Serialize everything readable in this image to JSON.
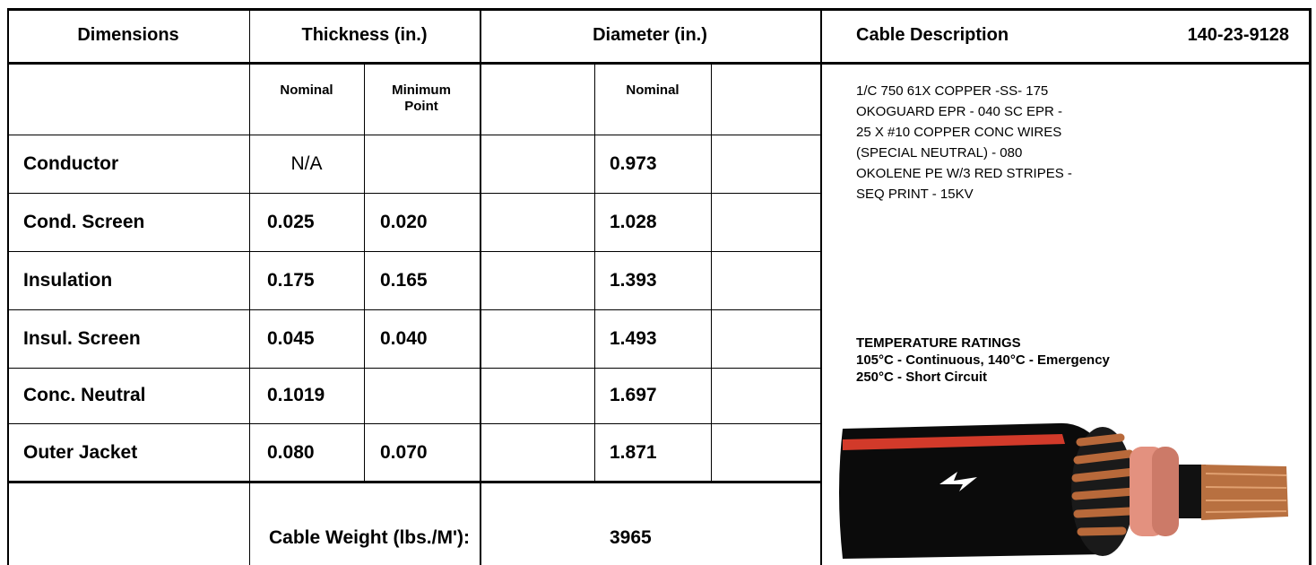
{
  "header": {
    "dimensions": "Dimensions",
    "thickness": "Thickness (in.)",
    "diameter": "Diameter (in.)",
    "cable_description": "Cable Description",
    "part_number": "140-23-9128"
  },
  "subheader": {
    "nominal": "Nominal",
    "minimum_point": "Minimum Point",
    "diameter_nominal": "Nominal"
  },
  "rows": [
    {
      "name": "Conductor",
      "nominal": "N/A",
      "diameter": "0.973"
    },
    {
      "name": "Cond. Screen",
      "nominal": "0.025",
      "minimum": "0.020",
      "diameter": "1.028"
    },
    {
      "name": "Insulation",
      "nominal": "0.175",
      "minimum": "0.165",
      "diameter": "1.393"
    },
    {
      "name": "Insul. Screen",
      "nominal": "0.045",
      "minimum": "0.040",
      "diameter": "1.493"
    },
    {
      "name": "Conc. Neutral",
      "nominal": "0.1019",
      "diameter": "1.697"
    },
    {
      "name": "Outer Jacket",
      "nominal": "0.080",
      "minimum": "0.070",
      "diameter": "1.871"
    }
  ],
  "weight": {
    "label": "Cable Weight (lbs./M'):",
    "value": "3965"
  },
  "description": [
    "1/C 750 61X COPPER -SS- 175",
    "OKOGUARD EPR - 040 SC EPR -",
    "25 X #10 COPPER CONC WIRES",
    "(SPECIAL NEUTRAL) - 080",
    "OKOLENE PE W/3 RED STRIPES -",
    "SEQ PRINT - 15KV"
  ],
  "temperature": {
    "title": "TEMPERATURE RATINGS",
    "lines": [
      "105°C - Continuous, 140°C - Emergency",
      "250°C - Short Circuit"
    ]
  }
}
